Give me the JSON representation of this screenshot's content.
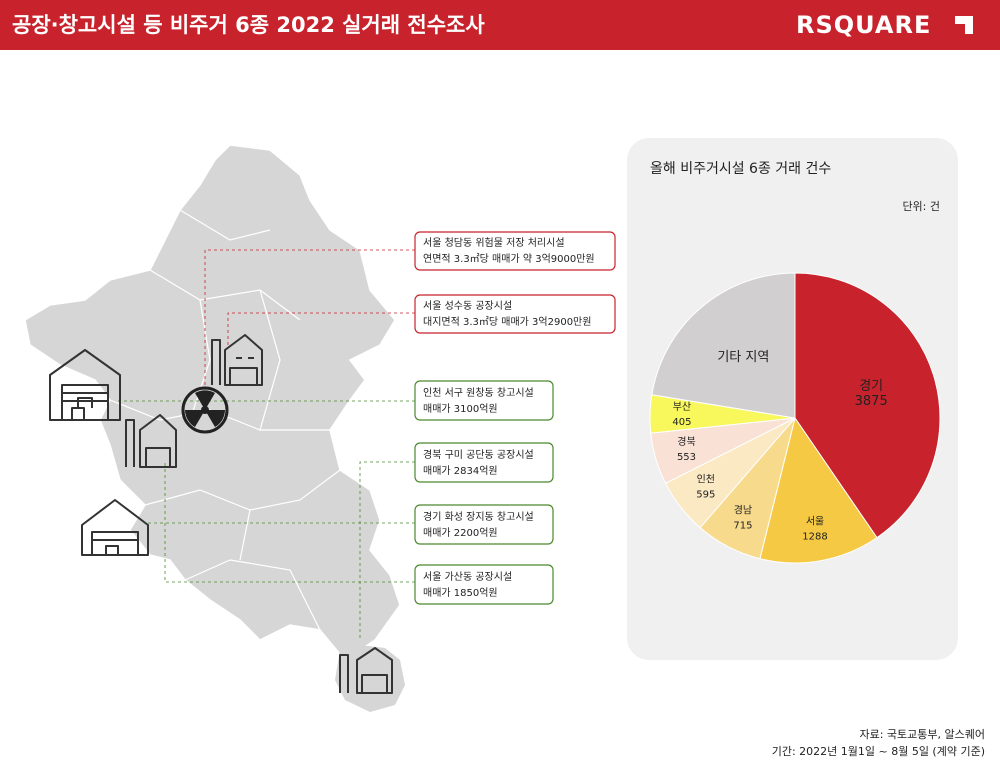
{
  "header": {
    "title": "공장·창고시설 등 비주거 6종 2022 실거래 전수조사",
    "logo": "RSQUARE"
  },
  "callouts": [
    [
      "서울 청담동 위험물 저장 처리시설",
      "연면적 3.3㎡당 매매가 약 3억9000만원"
    ],
    [
      "서울 성수동 공장시설",
      "대지면적 3.3㎡당 매매가 3억2900만원"
    ],
    [
      "인천 서구 원창동 창고시설",
      "매매가 3100억원"
    ],
    [
      "경북 구미 공단동 공장시설",
      "매매가 2834억원"
    ],
    [
      "경기 화성 장지동 창고시설",
      "매매가 2200억원"
    ],
    [
      "서울 가산동 공장시설",
      "매매가 1850억원"
    ]
  ],
  "chart_data": {
    "type": "pie",
    "title": "올해 비주거시설 6종 거래 건수",
    "unit_label": "단위: 건",
    "categories": [
      "경기",
      "서울",
      "경남",
      "인천",
      "경북",
      "부산",
      "기타 지역"
    ],
    "values": [
      3875,
      1288,
      715,
      595,
      553,
      405,
      2150
    ],
    "colors": [
      "#c8232c",
      "#f6c944",
      "#f8da8c",
      "#fbe9c4",
      "#f9e1d6",
      "#f8f75c",
      "#d1cfcf"
    ]
  },
  "source": [
    "자료: 국토교통부, 알스퀘어",
    "기간: 2022년 1월1일 ~ 8월 5일 (계약 기준)"
  ]
}
